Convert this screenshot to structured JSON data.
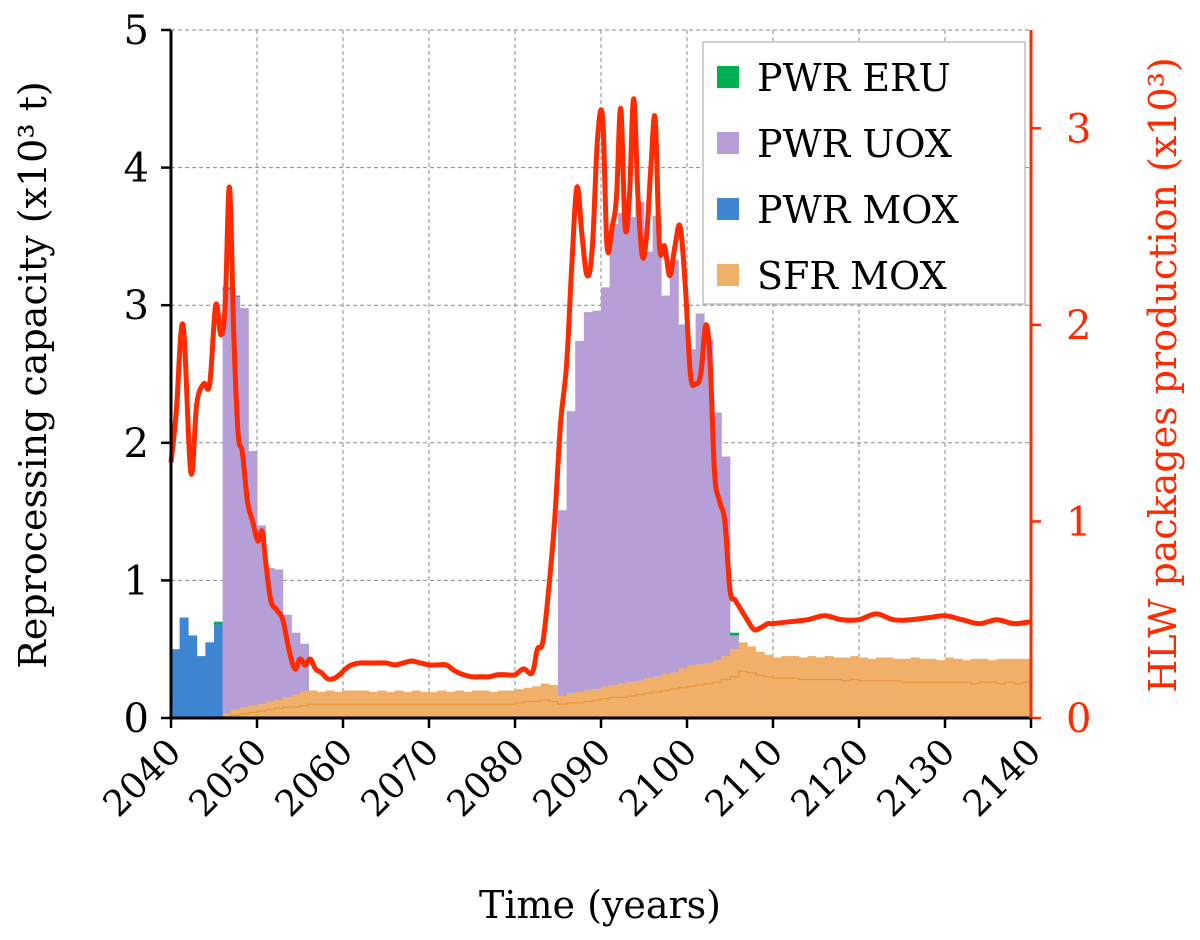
{
  "chart_data": {
    "type": "bar",
    "xlabel": "Time (years)",
    "ylabel_left": "Reprocessing capacity (x10³ t)",
    "ylabel_right": "HLW packages production (x10³)",
    "x_range": [
      2040,
      2140
    ],
    "y_left_range": [
      0,
      5
    ],
    "y_right_range": [
      0,
      3.5
    ],
    "x_ticks": [
      2040,
      2050,
      2060,
      2070,
      2080,
      2090,
      2100,
      2110,
      2120,
      2130,
      2140
    ],
    "y_left_ticks": [
      0,
      1,
      2,
      3,
      4,
      5
    ],
    "y_right_ticks": [
      0,
      1,
      2,
      3
    ],
    "grid": true,
    "legend_position": "top-right",
    "colors": {
      "pwr_eru": "#00b050",
      "pwr_uox": "#b59fd6",
      "pwr_mox": "#3f86d2",
      "sfr_mox": "#f0b06a",
      "sfr_mox_line": "#e8943a",
      "hlw_line": "#ff2a00"
    },
    "legend": [
      {
        "label": "PWR ERU",
        "key": "pwr_eru"
      },
      {
        "label": "PWR UOX",
        "key": "pwr_uox"
      },
      {
        "label": "PWR MOX",
        "key": "pwr_mox"
      },
      {
        "label": "SFR MOX",
        "key": "sfr_mox"
      }
    ],
    "bar_series": {
      "x_start": [
        2040,
        2041,
        2042,
        2043,
        2044,
        2045,
        2046,
        2047,
        2048,
        2049,
        2050,
        2051,
        2052,
        2053,
        2054,
        2055,
        2056,
        2057,
        2058,
        2059,
        2060,
        2061,
        2062,
        2063,
        2064,
        2065,
        2066,
        2067,
        2068,
        2069,
        2070,
        2071,
        2072,
        2073,
        2074,
        2075,
        2076,
        2077,
        2078,
        2079,
        2080,
        2081,
        2082,
        2083,
        2084,
        2085,
        2086,
        2087,
        2088,
        2089,
        2090,
        2091,
        2092,
        2093,
        2094,
        2095,
        2096,
        2097,
        2098,
        2099,
        2100,
        2101,
        2102,
        2103,
        2104,
        2105,
        2106,
        2107,
        2108,
        2109,
        2110,
        2111,
        2112,
        2113,
        2114,
        2115,
        2116,
        2117,
        2118,
        2119,
        2120,
        2121,
        2122,
        2123,
        2124,
        2125,
        2126,
        2127,
        2128,
        2129,
        2130,
        2131,
        2132,
        2133,
        2134,
        2135,
        2136,
        2137,
        2138,
        2139
      ],
      "sfr_mox": [
        0,
        0,
        0,
        0,
        0,
        0,
        0.03,
        0.06,
        0.08,
        0.09,
        0.1,
        0.12,
        0.13,
        0.15,
        0.17,
        0.19,
        0.2,
        0.19,
        0.2,
        0.19,
        0.2,
        0.2,
        0.2,
        0.19,
        0.2,
        0.19,
        0.2,
        0.19,
        0.2,
        0.19,
        0.19,
        0.2,
        0.19,
        0.2,
        0.19,
        0.2,
        0.2,
        0.19,
        0.2,
        0.2,
        0.21,
        0.22,
        0.23,
        0.25,
        0.24,
        0.16,
        0.18,
        0.19,
        0.2,
        0.21,
        0.23,
        0.24,
        0.25,
        0.26,
        0.27,
        0.29,
        0.3,
        0.32,
        0.33,
        0.36,
        0.38,
        0.39,
        0.4,
        0.42,
        0.45,
        0.5,
        0.55,
        0.52,
        0.48,
        0.46,
        0.44,
        0.45,
        0.45,
        0.44,
        0.45,
        0.44,
        0.45,
        0.44,
        0.44,
        0.45,
        0.44,
        0.43,
        0.44,
        0.44,
        0.43,
        0.43,
        0.44,
        0.43,
        0.43,
        0.42,
        0.44,
        0.43,
        0.42,
        0.43,
        0.43,
        0.42,
        0.43,
        0.43,
        0.43,
        0.43
      ],
      "sfr_mox_inner_line": [
        0,
        0,
        0,
        0,
        0,
        0,
        0.01,
        0.02,
        0.03,
        0.04,
        0.05,
        0.06,
        0.07,
        0.08,
        0.08,
        0.09,
        0.1,
        0.1,
        0.1,
        0.1,
        0.1,
        0.1,
        0.1,
        0.1,
        0.1,
        0.1,
        0.1,
        0.1,
        0.1,
        0.1,
        0.1,
        0.1,
        0.1,
        0.1,
        0.1,
        0.1,
        0.1,
        0.1,
        0.1,
        0.1,
        0.11,
        0.12,
        0.12,
        0.13,
        0.12,
        0.1,
        0.11,
        0.11,
        0.12,
        0.13,
        0.14,
        0.15,
        0.15,
        0.16,
        0.17,
        0.18,
        0.19,
        0.2,
        0.21,
        0.22,
        0.23,
        0.24,
        0.25,
        0.26,
        0.28,
        0.3,
        0.34,
        0.33,
        0.31,
        0.3,
        0.29,
        0.29,
        0.29,
        0.28,
        0.28,
        0.28,
        0.28,
        0.28,
        0.27,
        0.28,
        0.27,
        0.27,
        0.27,
        0.27,
        0.27,
        0.26,
        0.26,
        0.26,
        0.26,
        0.26,
        0.26,
        0.26,
        0.26,
        0.25,
        0.26,
        0.26,
        0.25,
        0.26,
        0.25,
        0.26
      ],
      "pwr_uox": [
        0,
        0,
        0,
        0,
        0,
        0,
        3.08,
        3.0,
        2.9,
        1.85,
        1.3,
        0.97,
        0.95,
        0.6,
        0.45,
        0.35,
        0,
        0,
        0,
        0,
        0,
        0,
        0,
        0,
        0,
        0,
        0,
        0,
        0,
        0,
        0,
        0,
        0,
        0,
        0,
        0,
        0,
        0,
        0,
        0,
        0,
        0,
        0,
        0,
        0,
        1.35,
        2.05,
        2.55,
        2.75,
        2.75,
        2.9,
        3.35,
        3.42,
        3.38,
        3.48,
        3.1,
        3.35,
        2.75,
        3.0,
        2.5,
        2.3,
        2.55,
        2.35,
        1.8,
        1.45,
        0.1,
        0,
        0,
        0,
        0,
        0,
        0,
        0,
        0,
        0,
        0,
        0,
        0,
        0,
        0,
        0,
        0,
        0,
        0,
        0,
        0,
        0,
        0,
        0,
        0,
        0,
        0,
        0,
        0,
        0,
        0,
        0,
        0,
        0,
        0
      ],
      "pwr_mox": [
        0.5,
        0.73,
        0.6,
        0.45,
        0.55,
        0.68,
        0.02,
        0.01,
        0,
        0,
        0,
        0,
        0,
        0,
        0,
        0,
        0,
        0,
        0,
        0,
        0,
        0,
        0,
        0,
        0,
        0,
        0,
        0,
        0,
        0,
        0,
        0,
        0,
        0,
        0,
        0,
        0,
        0,
        0,
        0,
        0,
        0,
        0,
        0,
        0,
        0,
        0,
        0,
        0,
        0,
        0,
        0,
        0,
        0,
        0,
        0,
        0,
        0,
        0,
        0,
        0,
        0,
        0,
        0,
        0,
        0,
        0,
        0,
        0,
        0,
        0,
        0,
        0,
        0,
        0,
        0,
        0,
        0,
        0,
        0,
        0,
        0,
        0,
        0,
        0,
        0,
        0,
        0,
        0,
        0,
        0,
        0,
        0,
        0,
        0,
        0,
        0,
        0,
        0,
        0
      ],
      "pwr_eru": [
        0,
        0,
        0,
        0,
        0,
        0.02,
        0,
        0,
        0,
        0,
        0,
        0,
        0,
        0,
        0,
        0,
        0,
        0,
        0,
        0,
        0,
        0,
        0,
        0,
        0,
        0,
        0,
        0,
        0,
        0,
        0,
        0,
        0,
        0,
        0,
        0,
        0,
        0,
        0,
        0,
        0,
        0,
        0,
        0,
        0,
        0,
        0,
        0,
        0,
        0,
        0,
        0,
        0,
        0,
        0,
        0,
        0,
        0,
        0,
        0,
        0,
        0,
        0,
        0,
        0,
        0.02,
        0,
        0,
        0,
        0,
        0,
        0,
        0,
        0,
        0,
        0,
        0,
        0,
        0,
        0,
        0,
        0,
        0,
        0,
        0,
        0,
        0,
        0,
        0,
        0,
        0,
        0,
        0,
        0,
        0,
        0,
        0,
        0,
        0,
        0
      ]
    },
    "hlw_production": {
      "x": [
        2040,
        2040.6,
        2041.4,
        2042.3,
        2043.0,
        2043.8,
        2044.5,
        2045.2,
        2045.8,
        2046.3,
        2046.8,
        2047.3,
        2047.8,
        2048.3,
        2048.9,
        2049.5,
        2050.1,
        2050.6,
        2051.0,
        2051.6,
        2052.3,
        2053.0,
        2053.7,
        2054.4,
        2055.0,
        2055.6,
        2056.2,
        2056.8,
        2057.5,
        2058.2,
        2058.9,
        2059.6,
        2060.3,
        2061.0,
        2062.0,
        2063.0,
        2064.0,
        2065.0,
        2066.0,
        2067.0,
        2068.0,
        2069.0,
        2070.0,
        2071.0,
        2072.0,
        2073.0,
        2074.0,
        2075.0,
        2076.0,
        2077.0,
        2078.0,
        2079.0,
        2080.0,
        2081.0,
        2082.0,
        2082.6,
        2083.2,
        2083.8,
        2084.6,
        2085.3,
        2086.0,
        2086.6,
        2087.2,
        2087.8,
        2088.4,
        2089.0,
        2089.6,
        2090.2,
        2090.7,
        2091.3,
        2091.8,
        2092.3,
        2092.8,
        2093.3,
        2093.8,
        2094.3,
        2094.8,
        2095.3,
        2095.8,
        2096.3,
        2096.8,
        2097.4,
        2098.0,
        2098.6,
        2099.2,
        2099.8,
        2100.4,
        2101.0,
        2101.6,
        2102.2,
        2102.7,
        2103.2,
        2103.8,
        2104.4,
        2105.0,
        2105.6,
        2106.3,
        2107.0,
        2107.8,
        2108.6,
        2109.4,
        2110.0,
        2112.0,
        2114.0,
        2116.0,
        2118.0,
        2120.0,
        2122.0,
        2124.0,
        2126.0,
        2128.0,
        2130.0,
        2132.0,
        2134.0,
        2136.0,
        2138.0,
        2140.0
      ],
      "y": [
        1.3,
        1.55,
        2.0,
        1.25,
        1.6,
        1.7,
        1.7,
        2.1,
        1.95,
        2.1,
        2.7,
        1.95,
        1.45,
        1.35,
        1.1,
        1.0,
        0.9,
        0.95,
        0.8,
        0.6,
        0.55,
        0.5,
        0.35,
        0.25,
        0.3,
        0.27,
        0.3,
        0.25,
        0.23,
        0.2,
        0.2,
        0.22,
        0.25,
        0.27,
        0.28,
        0.28,
        0.28,
        0.28,
        0.27,
        0.28,
        0.29,
        0.28,
        0.27,
        0.27,
        0.27,
        0.24,
        0.22,
        0.21,
        0.21,
        0.21,
        0.22,
        0.22,
        0.22,
        0.25,
        0.23,
        0.35,
        0.38,
        0.6,
        1.0,
        1.5,
        1.8,
        2.3,
        2.7,
        2.45,
        2.25,
        2.4,
        2.95,
        3.05,
        2.4,
        2.5,
        2.65,
        3.1,
        2.5,
        2.65,
        3.15,
        2.65,
        2.35,
        2.45,
        2.8,
        3.05,
        2.4,
        2.4,
        2.25,
        2.4,
        2.5,
        2.2,
        1.75,
        1.7,
        1.75,
        2.0,
        1.8,
        1.25,
        1.1,
        1.0,
        0.65,
        0.6,
        0.55,
        0.5,
        0.45,
        0.46,
        0.48,
        0.48,
        0.49,
        0.5,
        0.52,
        0.5,
        0.5,
        0.53,
        0.5,
        0.5,
        0.51,
        0.52,
        0.5,
        0.48,
        0.5,
        0.48,
        0.49
      ]
    }
  }
}
